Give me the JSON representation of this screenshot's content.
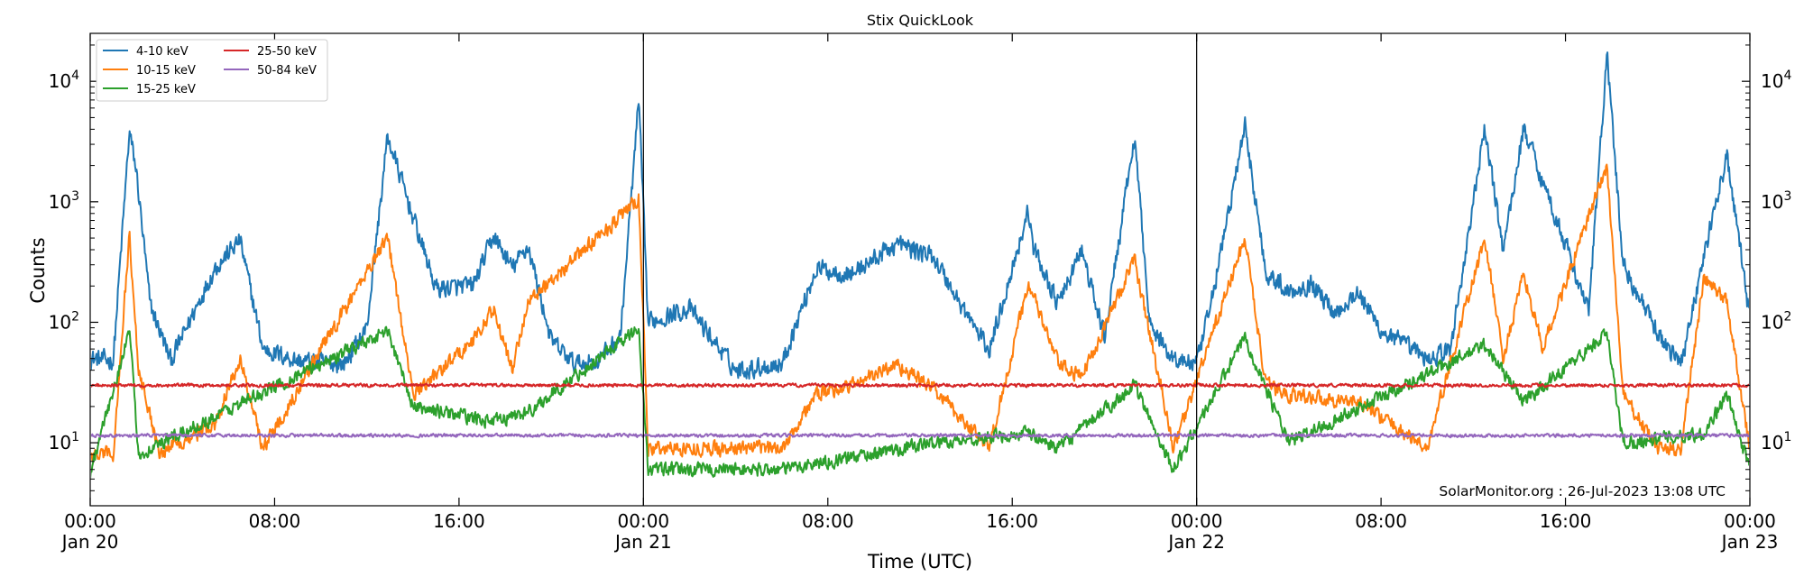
{
  "chart_data": {
    "type": "line",
    "title": "Stix QuickLook",
    "xlabel": "Time (UTC)",
    "ylabel": "Counts",
    "yscale": "log",
    "ylim": [
      3,
      25000
    ],
    "xlim_hours": [
      0,
      72
    ],
    "grid": false,
    "legend_position": "top-left",
    "x_ticks": [
      {
        "hour": 0,
        "time": "00:00",
        "date": "Jan 20"
      },
      {
        "hour": 8,
        "time": "08:00",
        "date": ""
      },
      {
        "hour": 16,
        "time": "16:00",
        "date": ""
      },
      {
        "hour": 24,
        "time": "00:00",
        "date": "Jan 21"
      },
      {
        "hour": 32,
        "time": "08:00",
        "date": ""
      },
      {
        "hour": 40,
        "time": "16:00",
        "date": ""
      },
      {
        "hour": 48,
        "time": "00:00",
        "date": "Jan 22"
      },
      {
        "hour": 56,
        "time": "08:00",
        "date": ""
      },
      {
        "hour": 64,
        "time": "16:00",
        "date": ""
      },
      {
        "hour": 72,
        "time": "00:00",
        "date": "Jan 23"
      }
    ],
    "y_ticks": [
      {
        "value": 10,
        "base": "10",
        "exp": "1"
      },
      {
        "value": 100,
        "base": "10",
        "exp": "2"
      },
      {
        "value": 1000,
        "base": "10",
        "exp": "3"
      },
      {
        "value": 10000,
        "base": "10",
        "exp": "4"
      }
    ],
    "day_boundaries_hours": [
      24,
      48
    ],
    "series": [
      {
        "name": "4-10 keV",
        "color": "#1f77b4",
        "baseline": 45,
        "x_hours": [
          0,
          1.0,
          1.7,
          2.0,
          2.6,
          3.5,
          5.4,
          6.5,
          7.5,
          9.0,
          11.0,
          12.0,
          12.9,
          14.0,
          15.0,
          16.6,
          17.5,
          18.3,
          19.0,
          20.0,
          21.0,
          22.0,
          23.0,
          23.8,
          24.2,
          26.0,
          28.0,
          30.0,
          31.5,
          33.0,
          35.0,
          36.6,
          37.5,
          39.0,
          40.7,
          40.9,
          42.0,
          43.0,
          44.0,
          45.3,
          46.0,
          47.0,
          48.0,
          48.5,
          50.1,
          51.0,
          52.0,
          53.0,
          54.0,
          55.0,
          56.0,
          58.0,
          59.0,
          60.5,
          61.3,
          62.2,
          63.0,
          64.0,
          65.0,
          65.8,
          66.5,
          68.0,
          69.0,
          70.0,
          71.0,
          72.0
        ],
        "values": [
          50,
          48,
          3800,
          1800,
          140,
          48,
          280,
          480,
          60,
          48,
          45,
          90,
          3500,
          750,
          190,
          200,
          520,
          280,
          430,
          70,
          45,
          48,
          75,
          7000,
          100,
          130,
          40,
          45,
          280,
          250,
          450,
          350,
          170,
          58,
          850,
          420,
          140,
          400,
          75,
          3400,
          90,
          50,
          45,
          110,
          4200,
          260,
          180,
          210,
          120,
          180,
          85,
          50,
          58,
          4000,
          400,
          4200,
          1500,
          450,
          120,
          16500,
          300,
          80,
          45,
          350,
          2400,
          110
        ]
      },
      {
        "name": "10-15 keV",
        "color": "#ff7f0e",
        "baseline": 8.5,
        "x_hours": [
          0,
          1.0,
          1.7,
          2.1,
          3.0,
          5.4,
          6.5,
          7.5,
          12.9,
          14.0,
          16.6,
          17.5,
          18.3,
          19.0,
          23.8,
          24.2,
          30.0,
          31.5,
          33.0,
          35.0,
          36.6,
          39.0,
          40.7,
          42.0,
          43.0,
          45.3,
          47.0,
          50.1,
          51.0,
          52.0,
          55.0,
          58.0,
          60.5,
          61.3,
          62.2,
          63.0,
          65.8,
          66.5,
          68.0,
          69.0,
          70.0,
          71.0,
          72.0
        ],
        "values": [
          8,
          8,
          520,
          40,
          8.5,
          14,
          50,
          9,
          520,
          25,
          70,
          130,
          40,
          150,
          1050,
          9,
          9,
          25,
          30,
          45,
          28,
          9,
          210,
          45,
          35,
          330,
          9,
          500,
          30,
          25,
          22,
          9,
          500,
          50,
          250,
          60,
          2000,
          25,
          9,
          9,
          230,
          150,
          9
        ]
      },
      {
        "name": "15-25 keV",
        "color": "#2ca02c",
        "baseline": 5.5,
        "x_hours": [
          0,
          1.7,
          2.1,
          12.9,
          14.0,
          17.5,
          19.0,
          23.8,
          24.2,
          30.0,
          36.6,
          40.7,
          42.0,
          45.3,
          47.0,
          50.1,
          52.0,
          60.5,
          62.2,
          65.8,
          66.5,
          70.0,
          71.0,
          72.0
        ],
        "values": [
          5.5,
          85,
          8,
          85,
          20,
          15,
          18,
          90,
          6,
          6,
          10,
          12,
          9,
          30,
          6,
          75,
          10,
          65,
          22,
          80,
          10,
          12,
          25,
          6
        ]
      },
      {
        "name": "25-50 keV",
        "color": "#d62728",
        "baseline": 30,
        "x_hours": [
          0,
          72
        ],
        "values": [
          30,
          30
        ]
      },
      {
        "name": "50-84 keV",
        "color": "#9467bd",
        "baseline": 11.5,
        "x_hours": [
          0,
          72
        ],
        "values": [
          11.5,
          11.5
        ]
      }
    ],
    "annotation": "SolarMonitor.org : 26-Jul-2023 13:08 UTC"
  }
}
